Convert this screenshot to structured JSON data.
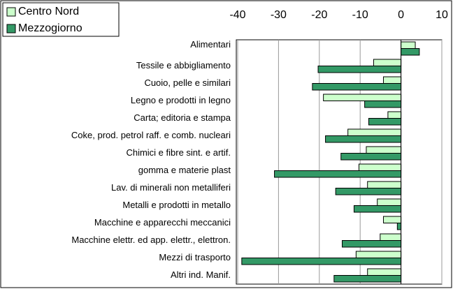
{
  "chart_data": {
    "type": "hbar",
    "categories": [
      "Alimentari",
      "Tessile e abbigliamento",
      "Cuoio, pelle e similari",
      "Legno e prodotti in legno",
      "Carta; editoria e stampa",
      "Coke, prod. petrol raff. e comb. nucleari",
      "Chimici e fibre sint. e artif.",
      "gomma e materie plast",
      "Lav. di minerali non metalliferi",
      "Metalli e prodotti in metallo",
      "Macchine e apparecchi meccanici",
      "Macchine elettr. ed app. elettr., elettron.",
      "Mezzi di trasporto",
      "Altri ind. Manif."
    ],
    "series": [
      {
        "name": "Centro Nord",
        "color": "#ccffcc",
        "values": [
          3.5,
          -6.7,
          -4.3,
          -19,
          -3.2,
          -13,
          -8.5,
          -10.3,
          -8.2,
          -5.8,
          -4.3,
          -5.1,
          -11,
          -8.2
        ]
      },
      {
        "name": "Mezzogiorno",
        "color": "#339966",
        "values": [
          4.5,
          -20.3,
          -21.7,
          -8.9,
          -7.9,
          -18.5,
          -14.7,
          -31,
          -16,
          -11.5,
          -0.9,
          -14.4,
          -39,
          -16.4
        ]
      }
    ],
    "xlim": [
      -40,
      10
    ],
    "xticks": [
      -40,
      -30,
      -20,
      -10,
      0,
      10
    ],
    "grid": true,
    "legend": "upper-left"
  }
}
